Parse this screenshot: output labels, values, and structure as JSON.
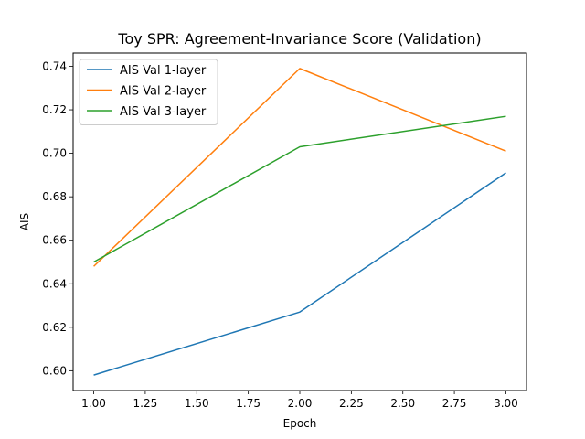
{
  "chart_data": {
    "type": "line",
    "title": "Toy SPR: Agreement-Invariance Score (Validation)",
    "xlabel": "Epoch",
    "ylabel": "AIS",
    "x": [
      1.0,
      2.0,
      3.0
    ],
    "xlim": [
      0.9,
      3.1
    ],
    "ylim": [
      0.5909,
      0.7461
    ],
    "xticks": [
      "1.00",
      "1.25",
      "1.50",
      "1.75",
      "2.00",
      "2.25",
      "2.50",
      "2.75",
      "3.00"
    ],
    "yticks": [
      "0.60",
      "0.62",
      "0.64",
      "0.66",
      "0.68",
      "0.70",
      "0.72",
      "0.74"
    ],
    "grid": false,
    "legend_position": "top-left",
    "series": [
      {
        "name": "AIS Val 1-layer",
        "color": "#1f77b4",
        "values": [
          0.598,
          0.627,
          0.691
        ]
      },
      {
        "name": "AIS Val 2-layer",
        "color": "#ff7f0e",
        "values": [
          0.648,
          0.739,
          0.701
        ]
      },
      {
        "name": "AIS Val 3-layer",
        "color": "#2ca02c",
        "values": [
          0.65,
          0.703,
          0.717
        ]
      }
    ]
  }
}
